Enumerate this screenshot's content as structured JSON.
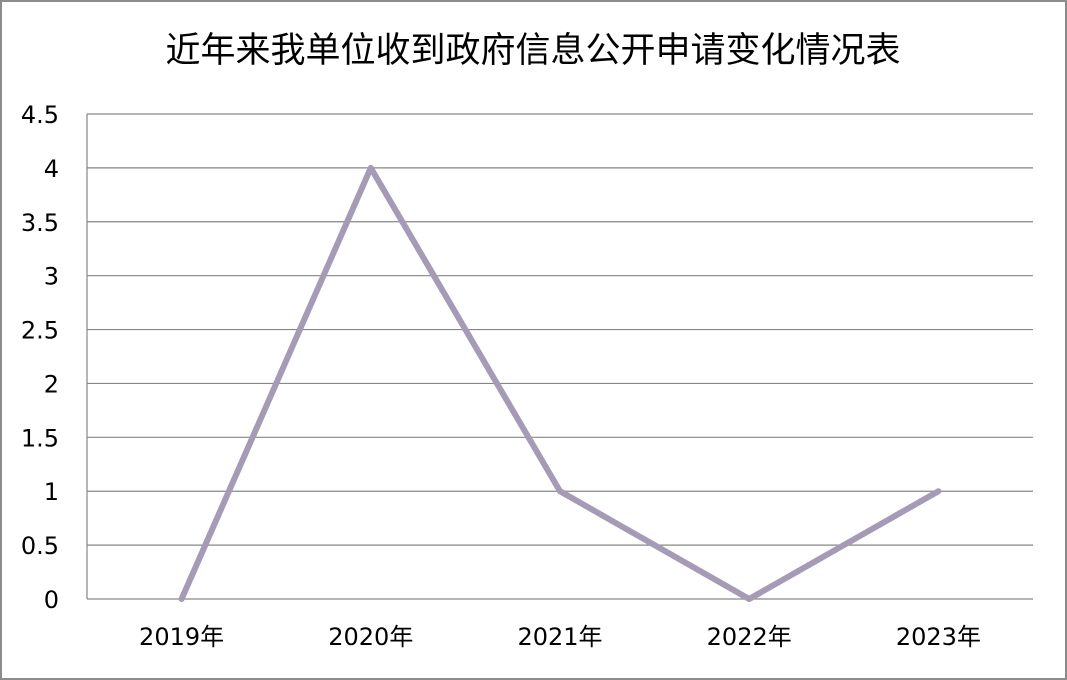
{
  "chart_data": {
    "type": "line",
    "title": "近年来我单位收到政府信息公开申请变化情况表",
    "xlabel": "",
    "ylabel": "",
    "categories": [
      "2019年",
      "2020年",
      "2021年",
      "2022年",
      "2023年"
    ],
    "series": [
      {
        "values": [
          0,
          4,
          1,
          0,
          1
        ],
        "color": "#a59bb6"
      }
    ],
    "ylim": [
      0,
      4.5
    ],
    "yticks": [
      0,
      0.5,
      1,
      1.5,
      2,
      2.5,
      3,
      3.5,
      4,
      4.5
    ],
    "ytick_labels": [
      "0",
      "0.5",
      "1",
      "1.5",
      "2",
      "2.5",
      "3",
      "3.5",
      "4",
      "4.5"
    ],
    "grid": true,
    "legend": "none"
  }
}
